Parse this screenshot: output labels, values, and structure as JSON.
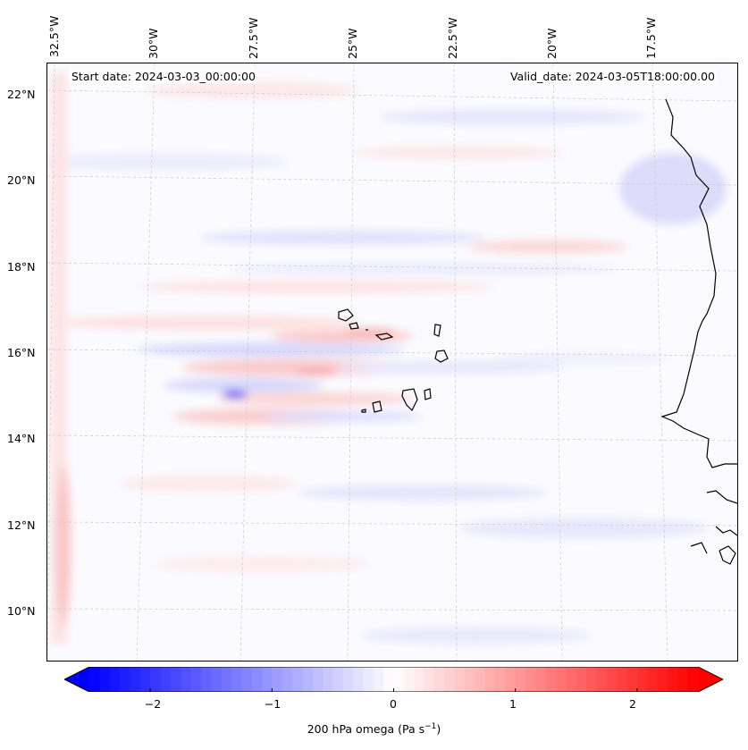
{
  "map": {
    "start_date": "Start date: 2024-03-03_00:00:00",
    "valid_date": "Valid_date: 2024-03-05T18:00:00.00",
    "lon_labels": [
      "32.5°W",
      "30°W",
      "27.5°W",
      "25°W",
      "22.5°W",
      "20°W",
      "17.5°W"
    ],
    "lat_labels": [
      "22°N",
      "20°N",
      "18°N",
      "16°N",
      "14°N",
      "12°N",
      "10°N"
    ],
    "lon_values": [
      -32.5,
      -30,
      -27.5,
      -25,
      -22.5,
      -20,
      -17.5
    ],
    "lat_values": [
      22,
      20,
      18,
      16,
      14,
      12,
      10
    ]
  },
  "colorbar": {
    "label_prefix": "200 hPa omega (Pa s",
    "label_exp": "−1",
    "label_suffix": ")",
    "ticks": [
      "−2",
      "−1",
      "0",
      "1",
      "2"
    ],
    "tick_values": [
      -2,
      -1,
      0,
      1,
      2
    ],
    "range": [
      -2.5,
      2.5
    ],
    "colormap": "bwr",
    "extend": "both"
  },
  "colors": {
    "negative": "#0000ff",
    "positive": "#ff0000",
    "neutral": "#ffffff"
  }
}
